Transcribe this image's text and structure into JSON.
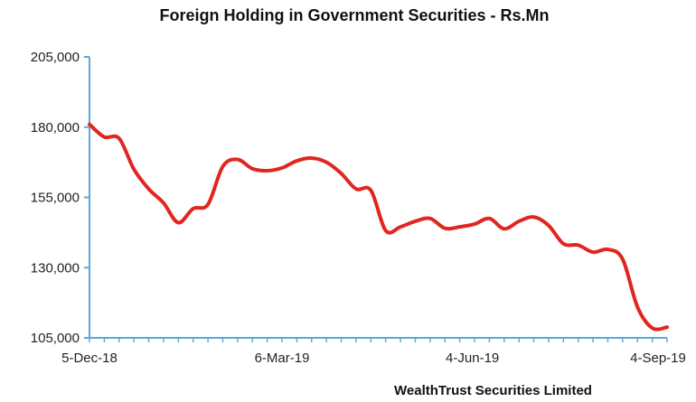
{
  "chart_data": {
    "type": "line",
    "title": "Foreign Holding in Government Securities - Rs.Mn",
    "source": "WealthTrust Securities Limited",
    "xlabel": "",
    "ylabel": "",
    "ylim": [
      105000,
      205000
    ],
    "yticks": [
      105000,
      130000,
      155000,
      180000,
      205000
    ],
    "ytick_labels": [
      "105,000",
      "130,000",
      "155,000",
      "180,000",
      "205,000"
    ],
    "xlim": [
      "2018-12-05",
      "2019-09-04"
    ],
    "xticks": [
      "2018-12-05",
      "2019-03-06",
      "2019-06-04",
      "2019-09-04"
    ],
    "xtick_labels": [
      "5-Dec-18",
      "6-Mar-19",
      "4-Jun-19",
      "4-Sep-19"
    ],
    "grid": false,
    "line_color": "#e0261f",
    "axis_color": "#5aaad8",
    "series": [
      {
        "x": [
          "2018-12-05",
          "2018-12-12",
          "2018-12-19",
          "2018-12-26",
          "2019-01-02",
          "2019-01-09",
          "2019-01-16",
          "2019-01-23",
          "2019-01-30",
          "2019-02-06",
          "2019-02-13",
          "2019-02-20",
          "2019-02-27",
          "2019-03-06",
          "2019-03-13",
          "2019-03-20",
          "2019-03-27",
          "2019-04-03",
          "2019-04-10",
          "2019-04-17",
          "2019-04-24",
          "2019-05-01",
          "2019-05-08",
          "2019-05-15",
          "2019-05-22",
          "2019-05-29",
          "2019-06-05",
          "2019-06-12",
          "2019-06-19",
          "2019-06-26",
          "2019-07-03",
          "2019-07-10",
          "2019-07-17",
          "2019-07-24",
          "2019-07-31",
          "2019-08-07",
          "2019-08-14",
          "2019-08-21",
          "2019-08-28",
          "2019-09-04"
        ],
        "values": [
          181000,
          176500,
          176000,
          165000,
          158000,
          153000,
          146000,
          151000,
          152500,
          166000,
          168500,
          165200,
          164500,
          165500,
          168000,
          169000,
          167500,
          163500,
          158000,
          157500,
          143200,
          144500,
          146500,
          147500,
          144000,
          144500,
          145500,
          147500,
          143800,
          146500,
          148000,
          145000,
          138500,
          138000,
          135500,
          136500,
          133000,
          116000,
          108500,
          108800
        ]
      }
    ]
  }
}
